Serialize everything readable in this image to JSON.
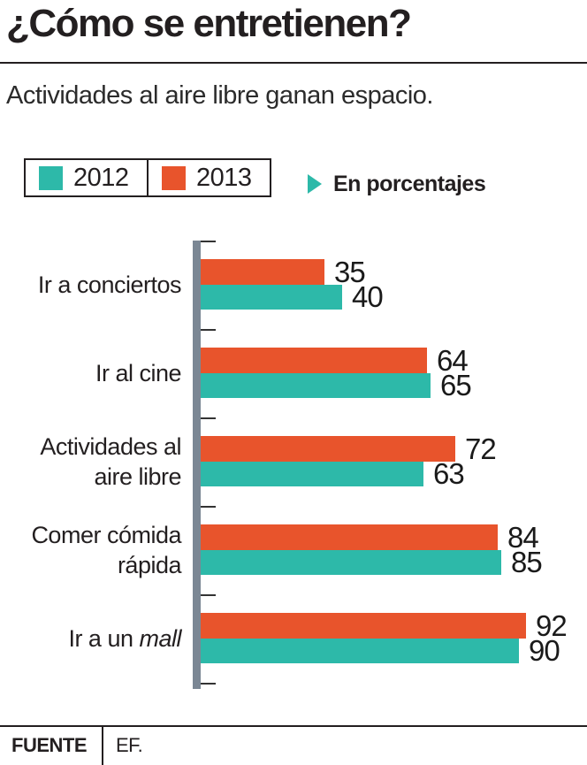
{
  "title": "¿Cómo se entretienen?",
  "subtitle": "Actividades al aire libre ganan espacio.",
  "legend": {
    "items": [
      {
        "label": "2012",
        "color": "#2db9a9"
      },
      {
        "label": "2013",
        "color": "#e8542c"
      }
    ],
    "note": "En porcentajes"
  },
  "footer": {
    "source_label": "FUENTE",
    "source_value": "EF."
  },
  "colors": {
    "series_2012": "#2db9a9",
    "series_2013": "#e8542c",
    "axis": "#7b8794",
    "text": "#231f20"
  },
  "chart_data": {
    "type": "bar",
    "orientation": "horizontal",
    "units": "percent",
    "title": "¿Cómo se entretienen?",
    "subtitle": "Actividades al aire libre ganan espacio.",
    "note": "En porcentajes",
    "categories": [
      "Ir a conciertos",
      "Ir al cine",
      "Actividades al\naire libre",
      "Comer cómida\nrápida",
      "Ir a un mall"
    ],
    "italic_terms": [
      "mall"
    ],
    "series": [
      {
        "name": "2013",
        "color": "#e8542c",
        "values": [
          35,
          64,
          72,
          84,
          92
        ]
      },
      {
        "name": "2012",
        "color": "#2db9a9",
        "values": [
          40,
          65,
          63,
          85,
          90
        ]
      }
    ],
    "xlim": [
      0,
      100
    ],
    "bar_order_top_to_bottom": [
      "2013",
      "2012"
    ],
    "legend_order": [
      "2012",
      "2013"
    ],
    "grid": false,
    "legend_position": "top-left"
  }
}
